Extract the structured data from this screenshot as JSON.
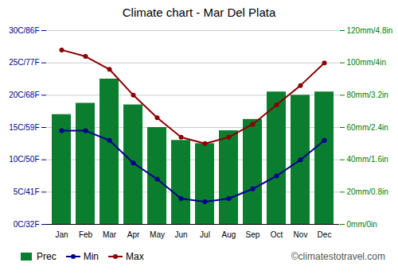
{
  "chart_data": {
    "type": "bar",
    "title": "Climate chart - Mar Del Plata",
    "categories": [
      "Jan",
      "Feb",
      "Mar",
      "Apr",
      "May",
      "Jun",
      "Jul",
      "Aug",
      "Sep",
      "Oct",
      "Nov",
      "Dec"
    ],
    "series": [
      {
        "name": "Prec",
        "type": "bar",
        "axis": "y2",
        "color": "#0a7d2e",
        "values": [
          68,
          75,
          90,
          74,
          60,
          52,
          50,
          58,
          65,
          82,
          80,
          82
        ]
      },
      {
        "name": "Min",
        "type": "line",
        "marker": "circle",
        "color": "#00008b",
        "values": [
          14.5,
          14.5,
          13,
          9.5,
          7,
          4,
          3.5,
          4,
          5.5,
          7.5,
          10,
          13
        ]
      },
      {
        "name": "Max",
        "type": "line",
        "marker": "circle",
        "color": "#8b0000",
        "values": [
          27,
          26,
          24,
          20,
          16.5,
          13.5,
          12.5,
          13.5,
          15.5,
          18.5,
          21.5,
          25
        ]
      }
    ],
    "ylim": [
      0,
      30
    ],
    "yticks": [
      {
        "value": 0,
        "label": "0C/32F"
      },
      {
        "value": 5,
        "label": "5C/41F"
      },
      {
        "value": 10,
        "label": "10C/50F"
      },
      {
        "value": 15,
        "label": "15C/59F"
      },
      {
        "value": 20,
        "label": "20C/68F"
      },
      {
        "value": 25,
        "label": "25C/77F"
      },
      {
        "value": 30,
        "label": "30C/86F"
      }
    ],
    "y2lim": [
      0,
      120
    ],
    "y2ticks": [
      {
        "value": 0,
        "label": "0mm/0in"
      },
      {
        "value": 20,
        "label": "20mm/0.8in"
      },
      {
        "value": 40,
        "label": "40mm/1.6in"
      },
      {
        "value": 60,
        "label": "60mm/2.4in"
      },
      {
        "value": 80,
        "label": "80mm/3.2in"
      },
      {
        "value": 100,
        "label": "100mm/4in"
      },
      {
        "value": 120,
        "label": "120mm/4.8in"
      }
    ],
    "grid": true,
    "legend": "lower left",
    "annotations": [
      "©climatestotravel.com"
    ]
  }
}
